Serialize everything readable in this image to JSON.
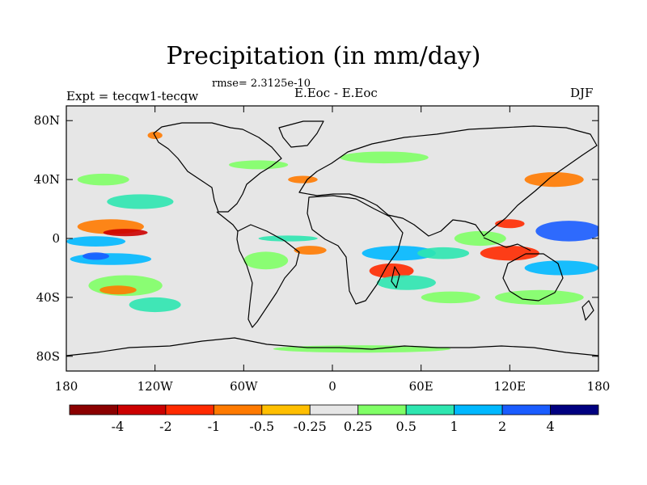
{
  "chart_data": {
    "type": "heatmap",
    "title": "Precipitation (in mm/day)",
    "rmse_label": "rmse= 2.3125e-10",
    "left_label": "Expt = tecqw1-tecqw",
    "center_label": "E.Eoc - E.Eoc",
    "right_label": "DJF",
    "xlim": [
      -180,
      180
    ],
    "ylim": [
      -90,
      90
    ],
    "x_ticks": [
      {
        "value": -180,
        "label": "180"
      },
      {
        "value": -120,
        "label": "120W"
      },
      {
        "value": -60,
        "label": "60W"
      },
      {
        "value": 0,
        "label": "0"
      },
      {
        "value": 60,
        "label": "60E"
      },
      {
        "value": 120,
        "label": "120E"
      },
      {
        "value": 180,
        "label": "180"
      }
    ],
    "y_ticks": [
      {
        "value": 80,
        "label": "80N"
      },
      {
        "value": 40,
        "label": "40N"
      },
      {
        "value": 0,
        "label": "0"
      },
      {
        "value": -40,
        "label": "40S"
      },
      {
        "value": -80,
        "label": "80S"
      }
    ],
    "colorbar": {
      "colors": [
        "#8b0000",
        "#cc0000",
        "#ff2a00",
        "#ff7a00",
        "#ffbf00",
        "#e6e6e6",
        "#80ff66",
        "#2ee6b0",
        "#00b8ff",
        "#1a5cff",
        "#000080"
      ],
      "labels": [
        "-4",
        "-2",
        "-1",
        "-0.5",
        "-0.25",
        "0.25",
        "0.5",
        "1",
        "2",
        "4"
      ]
    },
    "field_regions": [
      {
        "lon": -150,
        "lat": 8,
        "w": 45,
        "h": 10,
        "level": 3
      },
      {
        "lon": -140,
        "lat": 4,
        "w": 30,
        "h": 5,
        "level": 1
      },
      {
        "lon": -160,
        "lat": -2,
        "w": 40,
        "h": 7,
        "level": 8
      },
      {
        "lon": -150,
        "lat": -14,
        "w": 55,
        "h": 8,
        "level": 8
      },
      {
        "lon": -160,
        "lat": -12,
        "w": 18,
        "h": 5,
        "level": 9
      },
      {
        "lon": -130,
        "lat": 25,
        "w": 45,
        "h": 10,
        "level": 7
      },
      {
        "lon": -155,
        "lat": 40,
        "w": 35,
        "h": 8,
        "level": 6
      },
      {
        "lon": -140,
        "lat": -32,
        "w": 50,
        "h": 14,
        "level": 6
      },
      {
        "lon": -145,
        "lat": -35,
        "w": 25,
        "h": 6,
        "level": 3
      },
      {
        "lon": -120,
        "lat": -45,
        "w": 35,
        "h": 10,
        "level": 7
      },
      {
        "lon": -120,
        "lat": 70,
        "w": 10,
        "h": 5,
        "level": 3
      },
      {
        "lon": -50,
        "lat": 50,
        "w": 40,
        "h": 6,
        "level": 6
      },
      {
        "lon": -20,
        "lat": 40,
        "w": 20,
        "h": 5,
        "level": 3
      },
      {
        "lon": -45,
        "lat": -15,
        "w": 30,
        "h": 12,
        "level": 6
      },
      {
        "lon": -15,
        "lat": -8,
        "w": 22,
        "h": 6,
        "level": 3
      },
      {
        "lon": -30,
        "lat": 0,
        "w": 40,
        "h": 4,
        "level": 7
      },
      {
        "lon": 35,
        "lat": 55,
        "w": 60,
        "h": 8,
        "level": 6
      },
      {
        "lon": 45,
        "lat": -10,
        "w": 50,
        "h": 10,
        "level": 8
      },
      {
        "lon": 40,
        "lat": -22,
        "w": 30,
        "h": 10,
        "level": 2
      },
      {
        "lon": 50,
        "lat": -30,
        "w": 40,
        "h": 10,
        "level": 7
      },
      {
        "lon": 75,
        "lat": -10,
        "w": 35,
        "h": 8,
        "level": 7
      },
      {
        "lon": 80,
        "lat": -40,
        "w": 40,
        "h": 8,
        "level": 6
      },
      {
        "lon": 100,
        "lat": 0,
        "w": 35,
        "h": 10,
        "level": 6
      },
      {
        "lon": 120,
        "lat": -10,
        "w": 40,
        "h": 10,
        "level": 2
      },
      {
        "lon": 120,
        "lat": 10,
        "w": 20,
        "h": 6,
        "level": 2
      },
      {
        "lon": 160,
        "lat": 5,
        "w": 45,
        "h": 14,
        "level": 9
      },
      {
        "lon": 155,
        "lat": -20,
        "w": 50,
        "h": 10,
        "level": 8
      },
      {
        "lon": 150,
        "lat": 40,
        "w": 40,
        "h": 10,
        "level": 3
      },
      {
        "lon": 140,
        "lat": -40,
        "w": 60,
        "h": 10,
        "level": 6
      },
      {
        "lon": 20,
        "lat": -75,
        "w": 120,
        "h": 5,
        "level": 6
      }
    ]
  }
}
